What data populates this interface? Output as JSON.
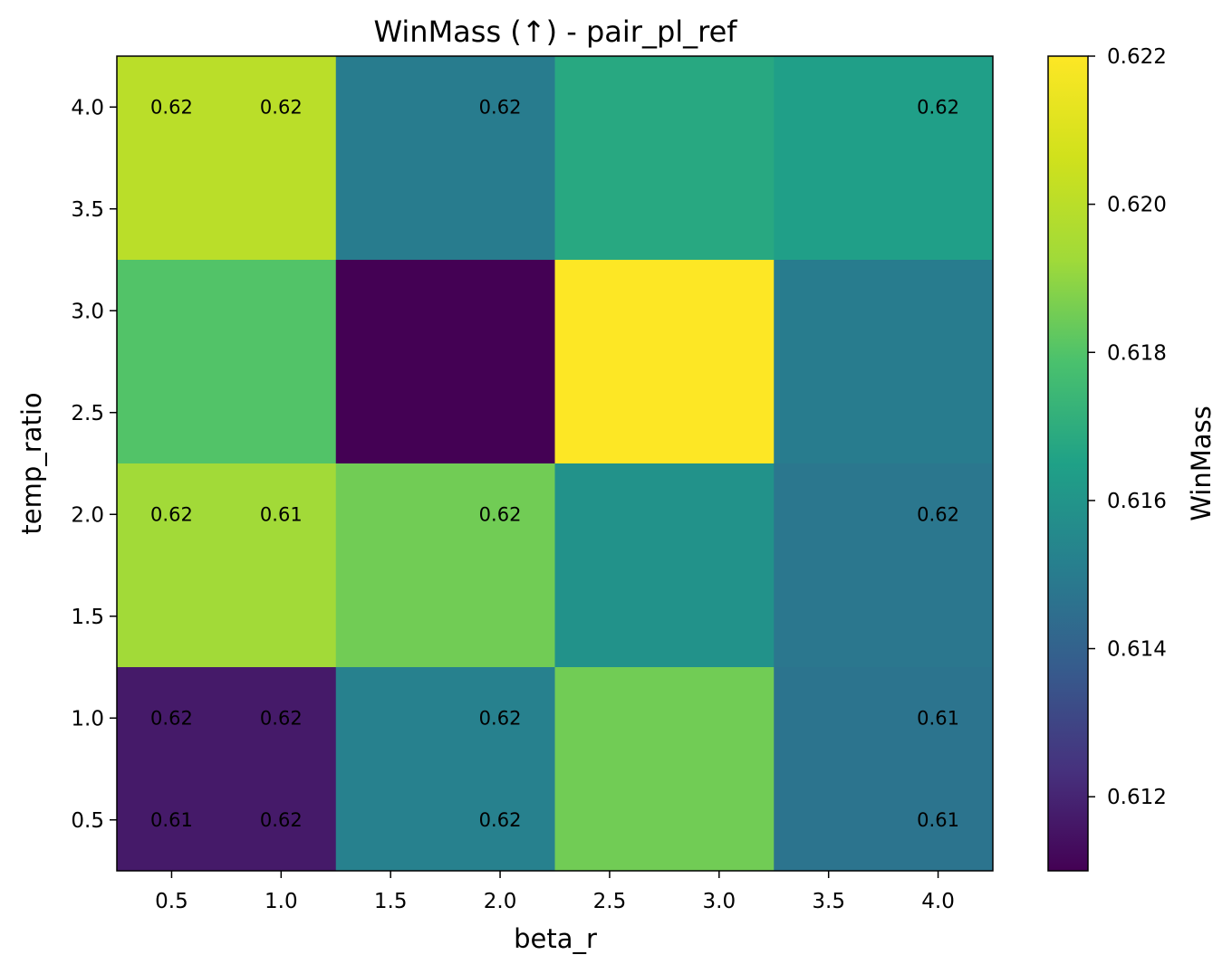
{
  "chart_data": {
    "type": "heatmap",
    "title": "WinMass (↑) - pair_pl_ref",
    "xlabel": "beta_r",
    "ylabel": "temp_ratio",
    "x_ticks": [
      "0.5",
      "1.0",
      "1.5",
      "2.0",
      "2.5",
      "3.0",
      "3.5",
      "4.0"
    ],
    "y_ticks": [
      "0.5",
      "1.0",
      "1.5",
      "2.0",
      "2.5",
      "3.0",
      "3.5",
      "4.0"
    ],
    "xlim": [
      0.25,
      4.25
    ],
    "ylim": [
      0.25,
      4.25
    ],
    "colorbar": {
      "label": "WinMass",
      "vmin": 0.611,
      "vmax": 0.622,
      "ticks": [
        "0.612",
        "0.614",
        "0.616",
        "0.618",
        "0.620",
        "0.622"
      ],
      "colormap": "viridis"
    },
    "cells": [
      {
        "x0": 0.25,
        "x1": 1.25,
        "y0": 3.25,
        "y1": 4.25,
        "value": 0.62
      },
      {
        "x0": 1.25,
        "x1": 2.25,
        "y0": 3.25,
        "y1": 4.25,
        "value": 0.615
      },
      {
        "x0": 2.25,
        "x1": 3.25,
        "y0": 3.25,
        "y1": 4.25,
        "value": 0.6168
      },
      {
        "x0": 3.25,
        "x1": 4.25,
        "y0": 3.25,
        "y1": 4.25,
        "value": 0.6164
      },
      {
        "x0": 0.25,
        "x1": 1.25,
        "y0": 2.25,
        "y1": 3.25,
        "value": 0.618
      },
      {
        "x0": 1.25,
        "x1": 2.25,
        "y0": 2.25,
        "y1": 3.25,
        "value": 0.611
      },
      {
        "x0": 2.25,
        "x1": 3.25,
        "y0": 2.25,
        "y1": 3.25,
        "value": 0.622
      },
      {
        "x0": 3.25,
        "x1": 4.25,
        "y0": 2.25,
        "y1": 3.25,
        "value": 0.615
      },
      {
        "x0": 0.25,
        "x1": 1.25,
        "y0": 1.25,
        "y1": 2.25,
        "value": 0.6193
      },
      {
        "x0": 1.25,
        "x1": 2.25,
        "y0": 1.25,
        "y1": 2.25,
        "value": 0.6185
      },
      {
        "x0": 2.25,
        "x1": 3.25,
        "y0": 1.25,
        "y1": 2.25,
        "value": 0.6159
      },
      {
        "x0": 3.25,
        "x1": 4.25,
        "y0": 1.25,
        "y1": 2.25,
        "value": 0.6148
      },
      {
        "x0": 0.25,
        "x1": 1.25,
        "y0": 0.25,
        "y1": 1.25,
        "value": 0.6117
      },
      {
        "x0": 1.25,
        "x1": 2.25,
        "y0": 0.25,
        "y1": 1.25,
        "value": 0.6152
      },
      {
        "x0": 2.25,
        "x1": 3.25,
        "y0": 0.25,
        "y1": 1.25,
        "value": 0.6185
      },
      {
        "x0": 3.25,
        "x1": 4.25,
        "y0": 0.25,
        "y1": 1.25,
        "value": 0.6147
      }
    ],
    "annotations": [
      {
        "x": 0.5,
        "y": 4.0,
        "text": "0.62"
      },
      {
        "x": 1.0,
        "y": 4.0,
        "text": "0.62"
      },
      {
        "x": 2.0,
        "y": 4.0,
        "text": "0.62"
      },
      {
        "x": 4.0,
        "y": 4.0,
        "text": "0.62"
      },
      {
        "x": 0.5,
        "y": 2.0,
        "text": "0.62"
      },
      {
        "x": 1.0,
        "y": 2.0,
        "text": "0.61"
      },
      {
        "x": 2.0,
        "y": 2.0,
        "text": "0.62"
      },
      {
        "x": 4.0,
        "y": 2.0,
        "text": "0.62"
      },
      {
        "x": 0.5,
        "y": 1.0,
        "text": "0.62"
      },
      {
        "x": 1.0,
        "y": 1.0,
        "text": "0.62"
      },
      {
        "x": 2.0,
        "y": 1.0,
        "text": "0.62"
      },
      {
        "x": 4.0,
        "y": 1.0,
        "text": "0.61"
      },
      {
        "x": 0.5,
        "y": 0.5,
        "text": "0.61"
      },
      {
        "x": 1.0,
        "y": 0.5,
        "text": "0.62"
      },
      {
        "x": 2.0,
        "y": 0.5,
        "text": "0.62"
      },
      {
        "x": 4.0,
        "y": 0.5,
        "text": "0.61"
      }
    ]
  }
}
